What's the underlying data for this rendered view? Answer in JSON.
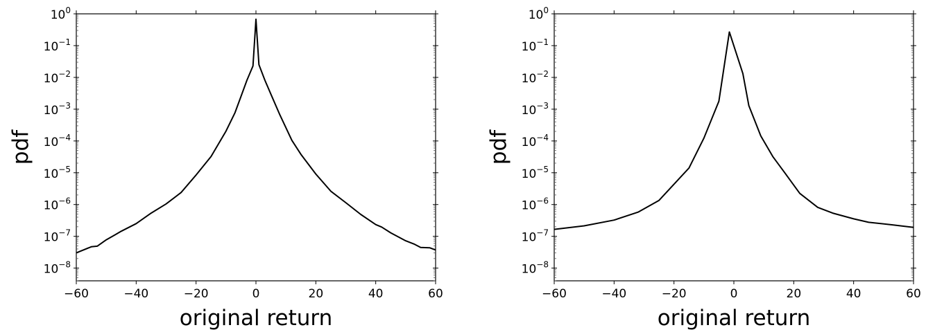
{
  "chart_data": [
    {
      "type": "line",
      "title": "",
      "xlabel": "original return",
      "ylabel": "pdf",
      "xlim": [
        -60,
        60
      ],
      "ylim_log10": [
        -8.4,
        0
      ],
      "yscale": "log",
      "grid": false,
      "xticks": [
        -60,
        -40,
        -20,
        0,
        20,
        40,
        60
      ],
      "xtick_labels": [
        "−60",
        "−40",
        "−20",
        "0",
        "20",
        "40",
        "60"
      ],
      "yticks_log10": [
        0,
        -1,
        -2,
        -3,
        -4,
        -5,
        -6,
        -7,
        -8
      ],
      "ytick_labels": [
        "10^0",
        "10^−1",
        "10^−2",
        "10^−3",
        "10^−4",
        "10^−5",
        "10^−6",
        "10^−7",
        "10^−8"
      ],
      "series": [
        {
          "name": "pdf",
          "color": "#000000",
          "x": [
            -60,
            -55,
            -53,
            -50,
            -47,
            -45,
            -40,
            -35,
            -30,
            -25,
            -20,
            -15,
            -10,
            -7,
            -5,
            -3,
            -1,
            0,
            1,
            3,
            5,
            8,
            12,
            15,
            20,
            25,
            30,
            35,
            40,
            42,
            45,
            50,
            53,
            55,
            58,
            60
          ],
          "log10_pdf": [
            -7.52,
            -7.33,
            -7.31,
            -7.11,
            -6.95,
            -6.84,
            -6.6,
            -6.27,
            -5.98,
            -5.62,
            -5.07,
            -4.49,
            -3.69,
            -3.11,
            -2.6,
            -2.09,
            -1.64,
            -0.17,
            -1.6,
            -2.09,
            -2.53,
            -3.18,
            -3.98,
            -4.42,
            -5.04,
            -5.58,
            -5.94,
            -6.31,
            -6.63,
            -6.71,
            -6.89,
            -7.14,
            -7.25,
            -7.35,
            -7.36,
            -7.43
          ]
        }
      ]
    },
    {
      "type": "line",
      "title": "",
      "xlabel": "original return",
      "ylabel": "pdf",
      "xlim": [
        -60,
        60
      ],
      "ylim_log10": [
        -8.4,
        0
      ],
      "yscale": "log",
      "grid": false,
      "xticks": [
        -60,
        -40,
        -20,
        0,
        20,
        40,
        60
      ],
      "xtick_labels": [
        "−60",
        "−40",
        "−20",
        "0",
        "20",
        "40",
        "60"
      ],
      "yticks_log10": [
        0,
        -1,
        -2,
        -3,
        -4,
        -5,
        -6,
        -7,
        -8
      ],
      "ytick_labels": [
        "10^0",
        "10^−1",
        "10^−2",
        "10^−3",
        "10^−4",
        "10^−5",
        "10^−6",
        "10^−7",
        "10^−8"
      ],
      "series": [
        {
          "name": "pdf",
          "color": "#000000",
          "x": [
            -60,
            -50,
            -40,
            -32,
            -25,
            -20,
            -15,
            -10,
            -5,
            -1.5,
            3,
            5,
            9,
            13,
            17,
            22,
            28,
            33,
            40,
            45,
            53,
            60
          ],
          "log10_pdf": [
            -6.78,
            -6.67,
            -6.49,
            -6.24,
            -5.87,
            -5.36,
            -4.85,
            -3.91,
            -2.75,
            -0.57,
            -1.88,
            -2.89,
            -3.84,
            -4.49,
            -5.0,
            -5.65,
            -6.09,
            -6.27,
            -6.45,
            -6.56,
            -6.64,
            -6.72
          ]
        }
      ]
    }
  ]
}
